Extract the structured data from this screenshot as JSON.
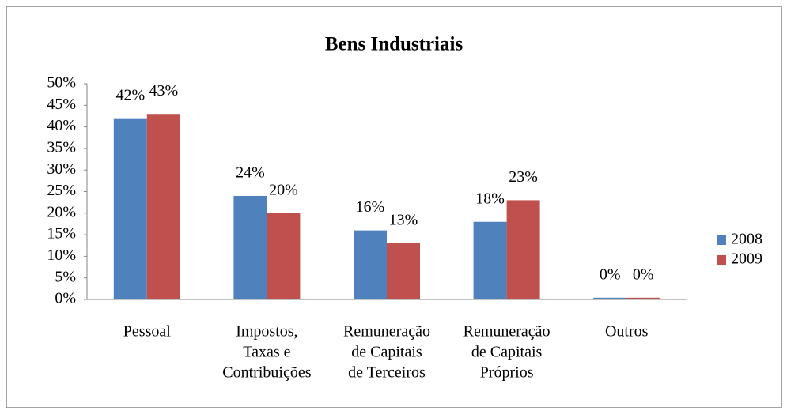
{
  "chart_data": {
    "type": "bar",
    "title": "Bens Industriais",
    "categories": [
      [
        "Pessoal"
      ],
      [
        "Impostos,",
        "Taxas e",
        "Contribuições"
      ],
      [
        "Remuneração",
        "de Capitais",
        "de Terceiros"
      ],
      [
        "Remuneração",
        "de Capitais",
        "Próprios"
      ],
      [
        "Outros"
      ]
    ],
    "series": [
      {
        "name": "2008",
        "color": "#4f81bd",
        "values": [
          42,
          24,
          16,
          18,
          0.4
        ],
        "value_labels": [
          "42%",
          "24%",
          "16%",
          "18%",
          "0%"
        ]
      },
      {
        "name": "2009",
        "color": "#c0504d",
        "values": [
          43,
          20,
          13,
          23,
          0.4
        ],
        "value_labels": [
          "43%",
          "20%",
          "13%",
          "23%",
          "0%"
        ]
      }
    ],
    "ylim": [
      0,
      50
    ],
    "yticks": [
      {
        "value": 0,
        "label": "0%"
      },
      {
        "value": 5,
        "label": "5%"
      },
      {
        "value": 10,
        "label": "10%"
      },
      {
        "value": 15,
        "label": "15%"
      },
      {
        "value": 20,
        "label": "20%"
      },
      {
        "value": 25,
        "label": "25%"
      },
      {
        "value": 30,
        "label": "30%"
      },
      {
        "value": 35,
        "label": "35%"
      },
      {
        "value": 40,
        "label": "40%"
      },
      {
        "value": 45,
        "label": "45%"
      },
      {
        "value": 50,
        "label": "50%"
      }
    ],
    "grid": false,
    "legend": "right"
  }
}
